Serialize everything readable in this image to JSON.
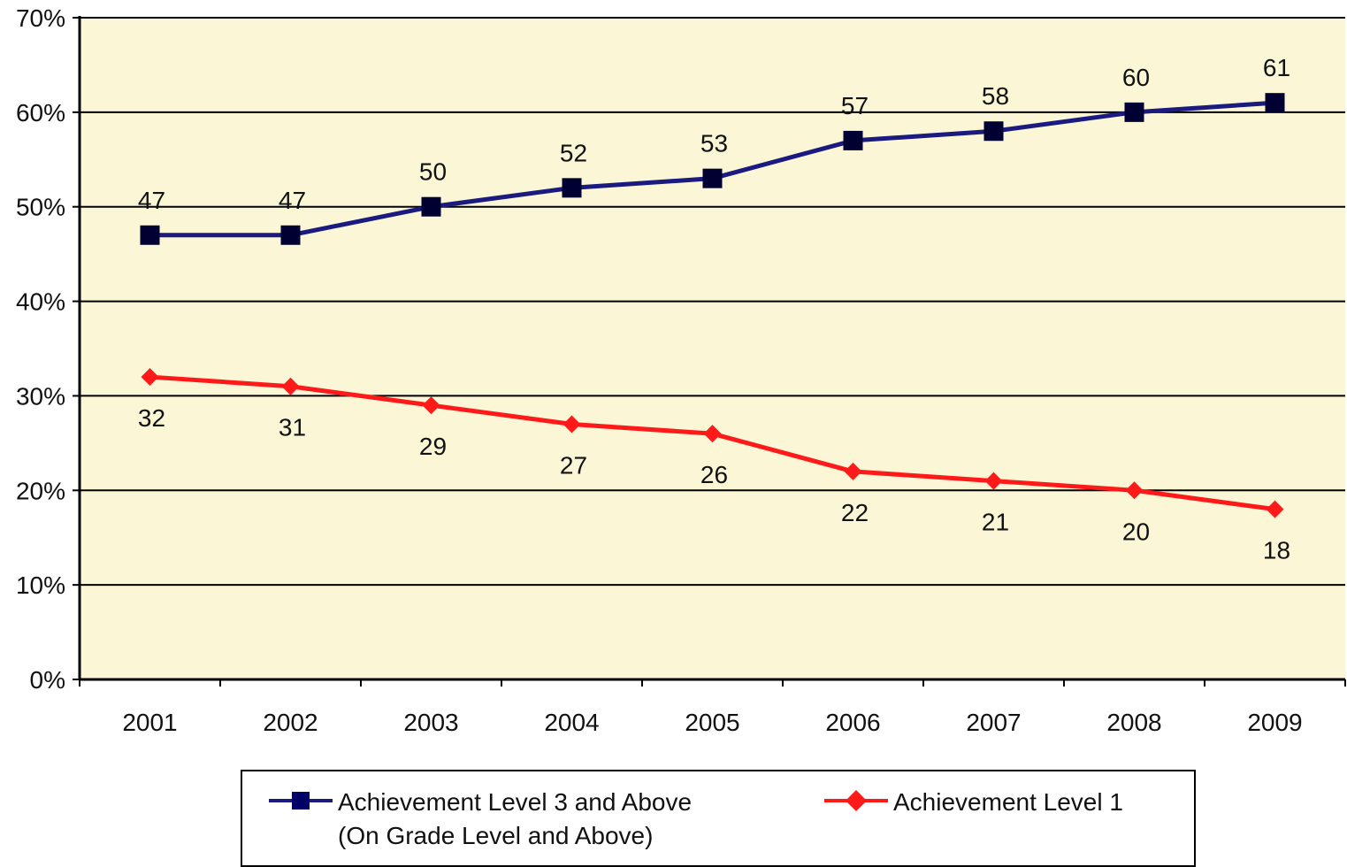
{
  "chart_data": {
    "type": "line",
    "categories": [
      "2001",
      "2002",
      "2003",
      "2004",
      "2005",
      "2006",
      "2007",
      "2008",
      "2009"
    ],
    "y_ticks": [
      "0%",
      "10%",
      "20%",
      "30%",
      "40%",
      "50%",
      "60%",
      "70%"
    ],
    "ylim": [
      0,
      70
    ],
    "grid": true,
    "legend_position": "bottom",
    "plot_background": "#fbf6d6",
    "series": [
      {
        "name": "Achievement Level 3 and Above\n(On Grade Level and Above)",
        "color": "#1a1a80",
        "marker": "square",
        "values": [
          47,
          47,
          50,
          52,
          53,
          57,
          58,
          60,
          61
        ],
        "labels": [
          "47",
          "47",
          "50",
          "52",
          "53",
          "57",
          "58",
          "60",
          "61"
        ],
        "label_position": "above"
      },
      {
        "name": "Achievement Level 1",
        "color": "#ff1a1a",
        "marker": "diamond",
        "values": [
          32,
          31,
          29,
          27,
          26,
          22,
          21,
          20,
          18
        ],
        "labels": [
          "32",
          "31",
          "29",
          "27",
          "26",
          "22",
          "21",
          "20",
          "18"
        ],
        "label_position": "below"
      }
    ]
  }
}
